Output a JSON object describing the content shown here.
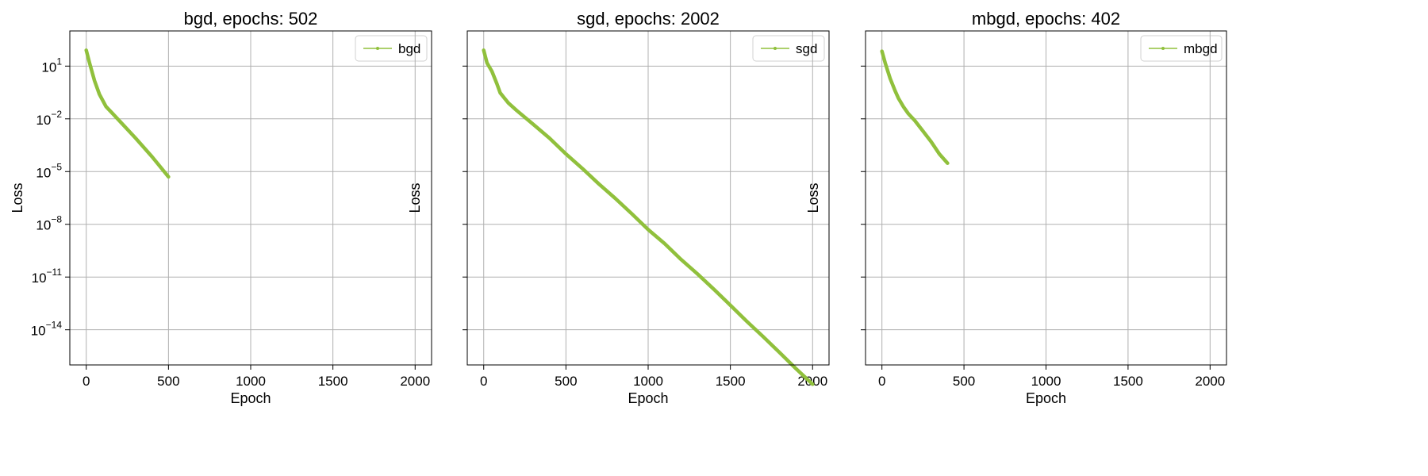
{
  "chart_data": [
    {
      "type": "line",
      "title": "bgd, epochs: 502",
      "xlabel": "Epoch",
      "ylabel": "Loss",
      "xlim": [
        -100,
        2100
      ],
      "x_ticks": [
        0,
        500,
        1000,
        1500,
        2000
      ],
      "yscale": "log",
      "ylim": [
        1e-16,
        1000.0
      ],
      "y_ticks": [
        10.0,
        0.01,
        1e-05,
        1e-08,
        1e-11,
        1e-14
      ],
      "y_tick_labels": [
        {
          "base": "10",
          "exp": "1"
        },
        {
          "base": "10",
          "exp": "−2"
        },
        {
          "base": "10",
          "exp": "−5"
        },
        {
          "base": "10",
          "exp": "−8"
        },
        {
          "base": "10",
          "exp": "−11"
        },
        {
          "base": "10",
          "exp": "−14"
        }
      ],
      "grid": true,
      "legend": "top-right",
      "series": [
        {
          "name": "bgd",
          "color": "#90c03c",
          "x": [
            0,
            20,
            50,
            80,
            120,
            160,
            200,
            300,
            400,
            500
          ],
          "y": [
            80,
            15,
            1.5,
            0.25,
            0.05,
            0.02,
            0.008,
            0.0008,
            7e-05,
            5e-06
          ]
        }
      ]
    },
    {
      "type": "line",
      "title": "sgd, epochs: 2002",
      "xlabel": "Epoch",
      "ylabel": "Loss",
      "xlim": [
        -100,
        2100
      ],
      "x_ticks": [
        0,
        500,
        1000,
        1500,
        2000
      ],
      "yscale": "log",
      "ylim": [
        1e-16,
        1000.0
      ],
      "y_ticks": [
        10.0,
        0.01,
        1e-05,
        1e-08,
        1e-11,
        1e-14
      ],
      "y_tick_labels": [
        {
          "base": "10",
          "exp": "1"
        },
        {
          "base": "10",
          "exp": "−2"
        },
        {
          "base": "10",
          "exp": "−5"
        },
        {
          "base": "10",
          "exp": "−8"
        },
        {
          "base": "10",
          "exp": "−11"
        },
        {
          "base": "10",
          "exp": "−14"
        }
      ],
      "grid": true,
      "legend": "top-right",
      "series": [
        {
          "name": "sgd",
          "color": "#90c03c",
          "x": [
            0,
            20,
            50,
            80,
            100,
            150,
            200,
            300,
            400,
            500,
            600,
            700,
            800,
            900,
            1000,
            1100,
            1200,
            1300,
            1400,
            1500,
            1600,
            1700,
            1800,
            1900,
            2000
          ],
          "y": [
            80,
            15,
            5,
            1,
            0.3,
            0.08,
            0.03,
            0.005,
            0.0008,
            0.0001,
            1.5e-05,
            2e-06,
            3e-07,
            4e-08,
            5e-09,
            8e-10,
            1e-10,
            1.5e-11,
            2e-12,
            2.5e-13,
            3e-14,
            4e-15,
            5e-16,
            6e-17,
            8e-18
          ]
        }
      ]
    },
    {
      "type": "line",
      "title": "mbgd, epochs: 402",
      "xlabel": "Epoch",
      "ylabel": "Loss",
      "xlim": [
        -100,
        2100
      ],
      "x_ticks": [
        0,
        500,
        1000,
        1500,
        2000
      ],
      "yscale": "log",
      "ylim": [
        1e-16,
        1000.0
      ],
      "y_ticks": [
        10.0,
        0.01,
        1e-05,
        1e-08,
        1e-11,
        1e-14
      ],
      "y_tick_labels": [
        {
          "base": "10",
          "exp": "1"
        },
        {
          "base": "10",
          "exp": "−2"
        },
        {
          "base": "10",
          "exp": "−5"
        },
        {
          "base": "10",
          "exp": "−8"
        },
        {
          "base": "10",
          "exp": "−11"
        },
        {
          "base": "10",
          "exp": "−14"
        }
      ],
      "grid": true,
      "legend": "top-right",
      "series": [
        {
          "name": "mbgd",
          "color": "#90c03c",
          "x": [
            0,
            20,
            50,
            80,
            100,
            130,
            160,
            200,
            250,
            300,
            350,
            400
          ],
          "y": [
            70,
            15,
            2,
            0.4,
            0.15,
            0.05,
            0.02,
            0.008,
            0.002,
            0.0005,
            0.0001,
            3e-05
          ]
        }
      ]
    }
  ]
}
